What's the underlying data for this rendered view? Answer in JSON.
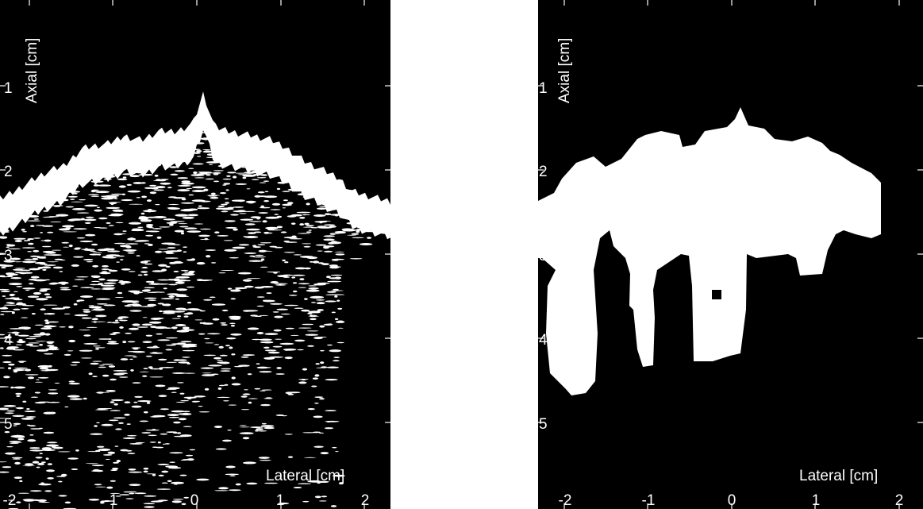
{
  "chart_data": [
    {
      "type": "heatmap",
      "title": "",
      "xlabel": "Lateral [cm]",
      "ylabel": "Axial [cm]",
      "xlim": [
        -2.25,
        2.3
      ],
      "ylim": [
        0.0,
        6.0
      ],
      "y_inverted": true,
      "x_ticks": [
        "-2",
        "-1",
        "0",
        "1",
        "2"
      ],
      "y_ticks": [
        "1",
        "2",
        "3",
        "4",
        "5"
      ],
      "colormap": "black-white",
      "content": "speckle B-mode image",
      "upper_boundary": {
        "x": [
          -2.25,
          -2.0,
          -1.75,
          -1.5,
          -1.3,
          -1.15,
          -1.0,
          -0.8,
          -0.6,
          -0.4,
          -0.2,
          0.0,
          0.12,
          0.25,
          0.45,
          0.7,
          0.9,
          1.1,
          1.3,
          1.5,
          1.7,
          1.85,
          2.0,
          2.3
        ],
        "y": [
          2.35,
          2.2,
          2.05,
          1.95,
          1.75,
          1.72,
          1.7,
          1.6,
          1.65,
          1.55,
          1.55,
          1.45,
          1.1,
          1.5,
          1.55,
          1.6,
          1.65,
          1.75,
          1.9,
          2.0,
          2.1,
          2.25,
          2.3,
          2.38
        ]
      }
    },
    {
      "type": "heatmap",
      "title": "",
      "xlabel": "Lateral [cm]",
      "ylabel": "Axial [cm]",
      "xlim": [
        -2.25,
        2.3
      ],
      "ylim": [
        0.0,
        6.0
      ],
      "y_inverted": true,
      "x_ticks": [
        "-2",
        "-1",
        "0",
        "1",
        "2"
      ],
      "y_ticks": [
        "1",
        "2",
        "3",
        "4",
        "5"
      ],
      "colormap": "black-white",
      "content": "binary segmentation mask"
    }
  ]
}
